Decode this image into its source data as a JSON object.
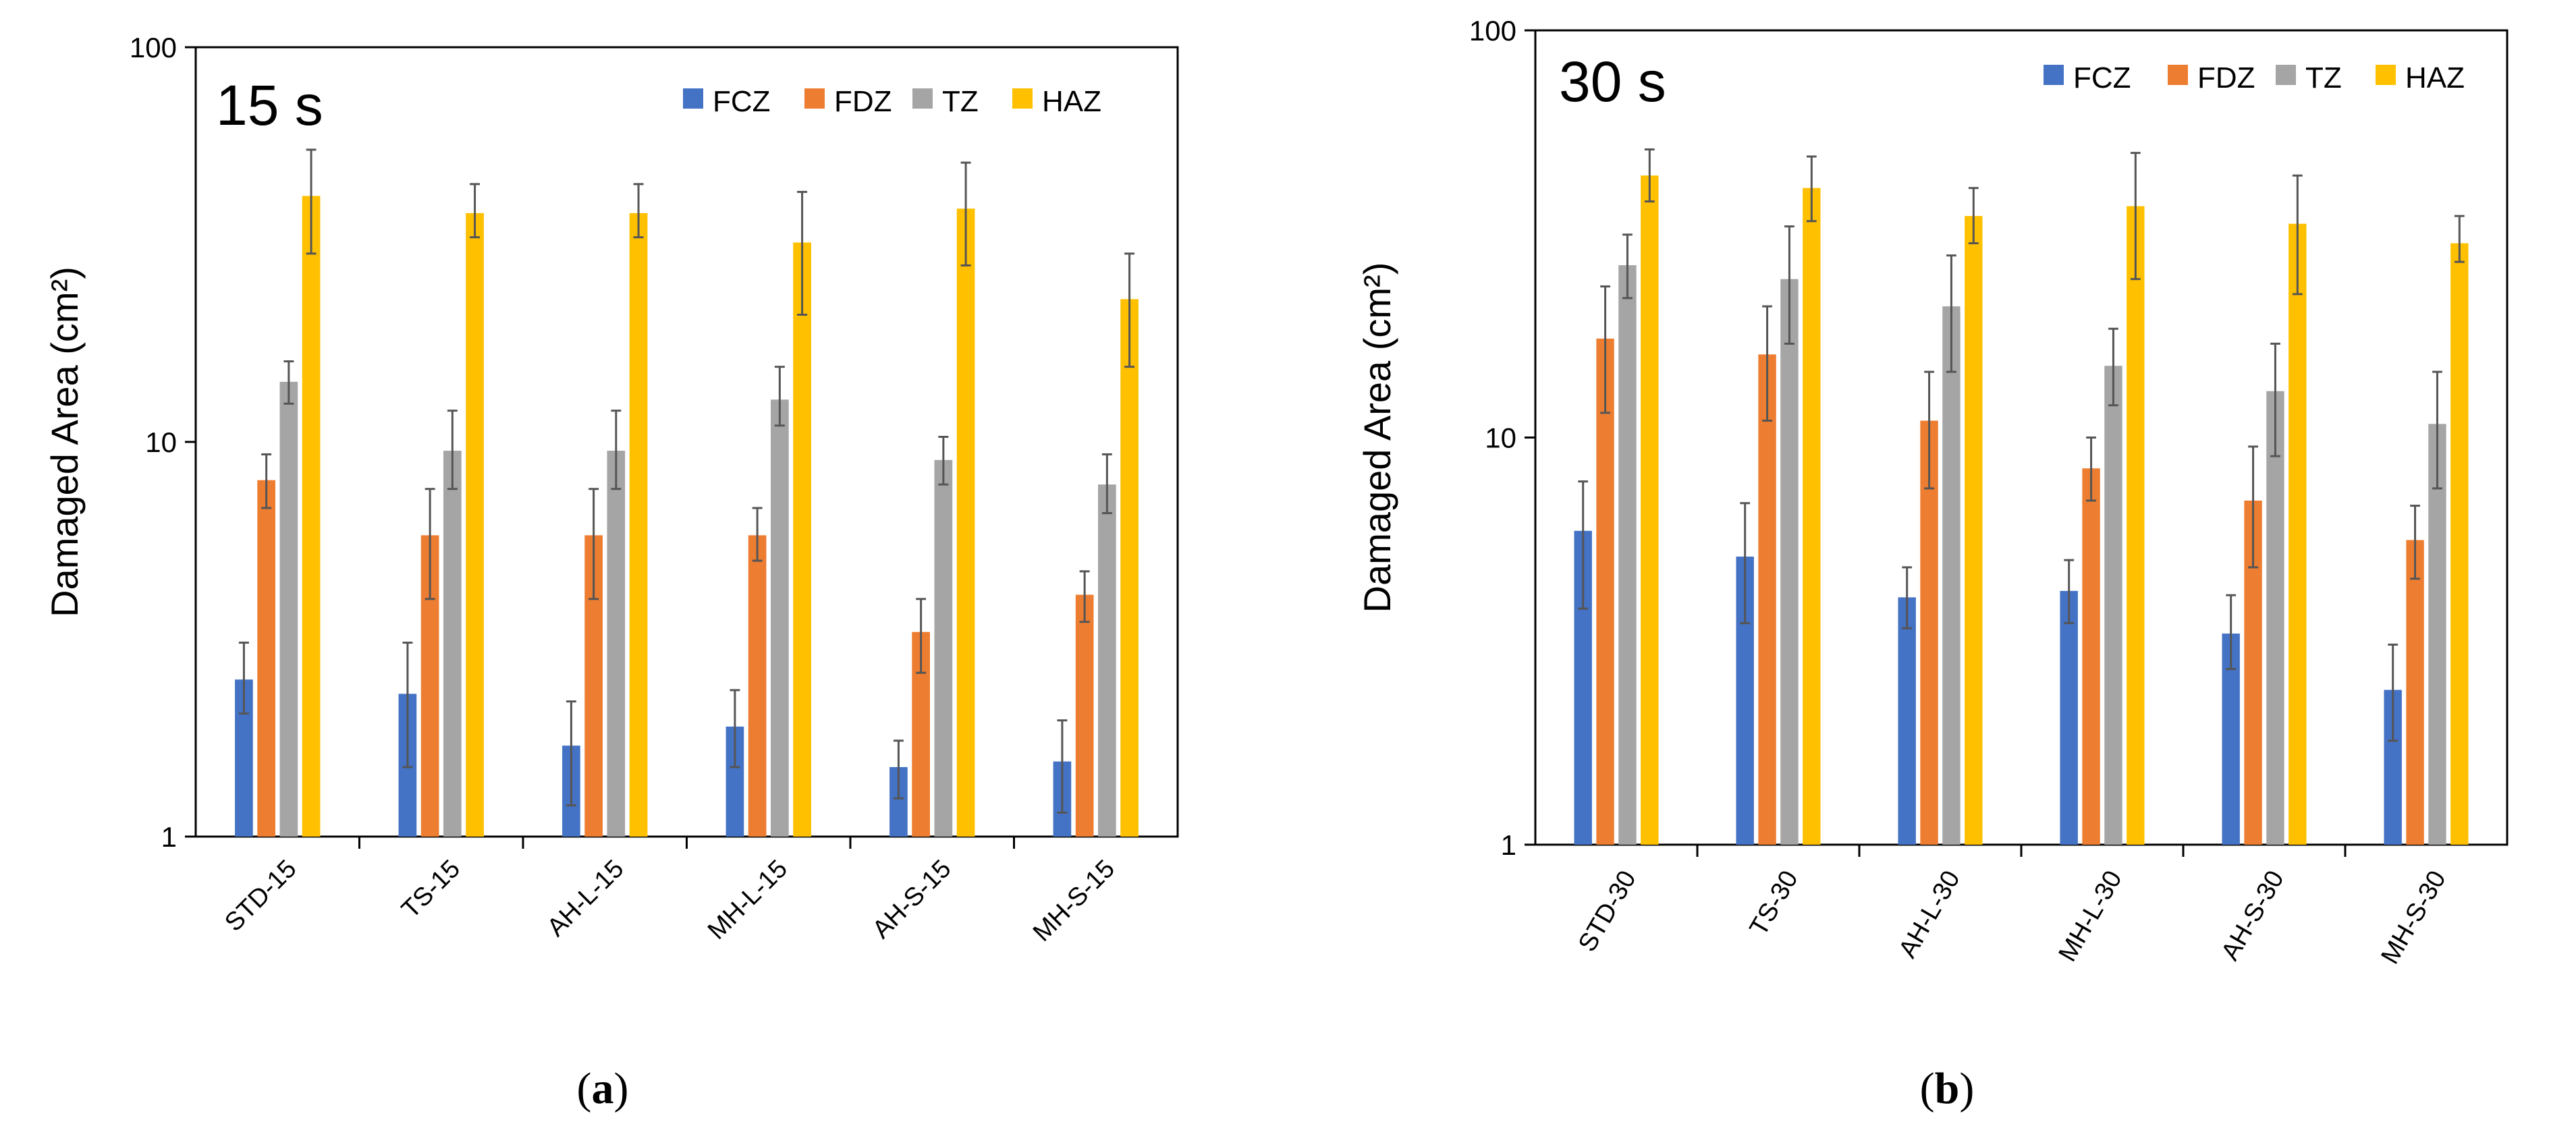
{
  "figure": {
    "colors": {
      "FCZ": "#4472C4",
      "FDZ": "#ED7D31",
      "TZ": "#A5A5A5",
      "HAZ": "#FFC000"
    }
  },
  "chart_data": [
    {
      "type": "bar",
      "panel_label": "(a)",
      "title": "15 s",
      "ylabel": "Damaged Area (cm²)",
      "yscale": "log",
      "ylim": [
        1,
        100
      ],
      "yticks": [
        "1",
        "10",
        "100"
      ],
      "legend_position": "top-right",
      "categories": [
        "STD-15",
        "TS-15",
        "AH-L-15",
        "MH-L-15",
        "AH-S-15",
        "MH-S-15"
      ],
      "series": [
        {
          "name": "FCZ",
          "values": [
            2.5,
            2.3,
            1.7,
            1.9,
            1.5,
            1.55
          ],
          "err_low": [
            2.05,
            1.5,
            1.2,
            1.5,
            1.25,
            1.15
          ],
          "err_high": [
            3.1,
            3.1,
            2.2,
            2.35,
            1.75,
            1.97
          ]
        },
        {
          "name": "FDZ",
          "values": [
            8.0,
            5.8,
            5.8,
            5.8,
            3.3,
            4.1
          ],
          "err_low": [
            6.8,
            4.0,
            4.0,
            5.0,
            2.6,
            3.5
          ],
          "err_high": [
            9.3,
            7.6,
            7.6,
            6.8,
            4.0,
            4.7
          ]
        },
        {
          "name": "TZ",
          "values": [
            14.2,
            9.5,
            9.5,
            12.8,
            9.0,
            7.8
          ],
          "err_low": [
            12.5,
            7.6,
            7.6,
            11.0,
            7.8,
            6.6
          ],
          "err_high": [
            16.0,
            12.0,
            12.0,
            15.5,
            10.3,
            9.3
          ]
        },
        {
          "name": "HAZ",
          "values": [
            42,
            38,
            38,
            32,
            39,
            23
          ],
          "err_low": [
            30,
            33,
            33,
            21,
            28,
            15.5
          ],
          "err_high": [
            55,
            45,
            45,
            43,
            51,
            30
          ]
        }
      ]
    },
    {
      "type": "bar",
      "panel_label": "(b)",
      "title": "30 s",
      "ylabel": "Damaged Area (cm²)",
      "yscale": "log",
      "ylim": [
        1,
        100
      ],
      "yticks": [
        "1",
        "10",
        "100"
      ],
      "legend_position": "top-right",
      "categories": [
        "STD-30",
        "TS-30",
        "AH-L-30",
        "MH-L-30",
        "AH-S-30",
        "MH-S-30"
      ],
      "series": [
        {
          "name": "FCZ",
          "values": [
            5.9,
            5.1,
            4.05,
            4.2,
            3.3,
            2.4
          ],
          "err_low": [
            3.8,
            3.5,
            3.4,
            3.5,
            2.7,
            1.8
          ],
          "err_high": [
            7.8,
            6.9,
            4.8,
            5.0,
            4.1,
            3.1
          ]
        },
        {
          "name": "FDZ",
          "values": [
            17.5,
            16.0,
            11.0,
            8.4,
            7.0,
            5.6
          ],
          "err_low": [
            11.5,
            11.0,
            7.5,
            7.0,
            4.8,
            4.5
          ],
          "err_high": [
            23.5,
            21.0,
            14.5,
            10.0,
            9.5,
            6.8
          ]
        },
        {
          "name": "TZ",
          "values": [
            26.5,
            24.5,
            21.0,
            15.0,
            13.0,
            10.8
          ],
          "err_low": [
            22.0,
            17.0,
            14.5,
            12.0,
            9.0,
            7.5
          ],
          "err_high": [
            31.5,
            33.0,
            28.0,
            18.5,
            17.0,
            14.5
          ]
        },
        {
          "name": "HAZ",
          "values": [
            44,
            41,
            35,
            37,
            33.5,
            30
          ],
          "err_low": [
            38,
            34,
            30,
            24.5,
            22.5,
            27
          ],
          "err_high": [
            51,
            49,
            41,
            50,
            44,
            35
          ]
        }
      ]
    }
  ]
}
